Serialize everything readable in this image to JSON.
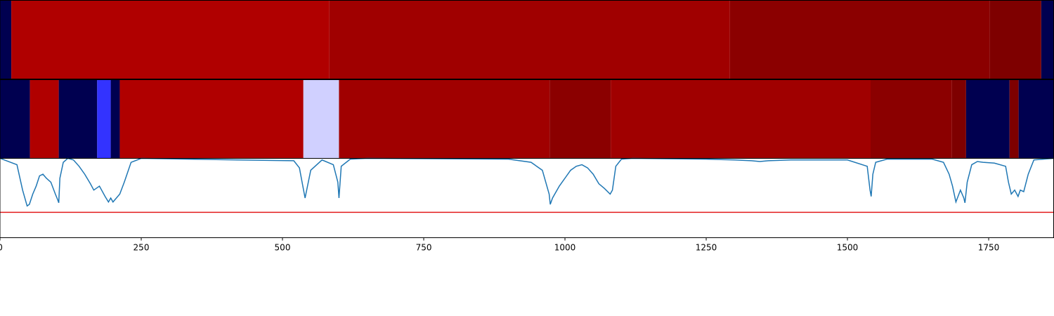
{
  "chart_data": {
    "type": "heatmap",
    "title": "",
    "xlabel": "",
    "ylabel": "",
    "xlim": [
      0,
      1865
    ],
    "grid": false,
    "legend": "none",
    "x_ticks": [
      0,
      250,
      500,
      750,
      1000,
      1250,
      1500,
      1750
    ],
    "x_tick_labels": [
      "0",
      "250",
      "500",
      "750",
      "1000",
      "1250",
      "1500",
      "1750"
    ],
    "panels": [
      {
        "type": "segment_strip",
        "segments": [
          {
            "start": 0,
            "end": 20,
            "color": "#000050"
          },
          {
            "start": 20,
            "end": 583,
            "color": "#b00000"
          },
          {
            "start": 583,
            "end": 1292,
            "color": "#a00000"
          },
          {
            "start": 1292,
            "end": 1752,
            "color": "#8b0000"
          },
          {
            "start": 1752,
            "end": 1843,
            "color": "#7e0000"
          },
          {
            "start": 1843,
            "end": 1865,
            "color": "#000050"
          }
        ]
      },
      {
        "type": "segment_strip",
        "segments": [
          {
            "start": 0,
            "end": 53,
            "color": "#000050"
          },
          {
            "start": 53,
            "end": 104,
            "color": "#b00000"
          },
          {
            "start": 104,
            "end": 172,
            "color": "#000050"
          },
          {
            "start": 172,
            "end": 196,
            "color": "#3333ff"
          },
          {
            "start": 196,
            "end": 212,
            "color": "#000050"
          },
          {
            "start": 212,
            "end": 537,
            "color": "#b00000"
          },
          {
            "start": 537,
            "end": 600,
            "color": "#d0d0ff"
          },
          {
            "start": 600,
            "end": 973,
            "color": "#a00000"
          },
          {
            "start": 973,
            "end": 1081,
            "color": "#8b0000"
          },
          {
            "start": 1081,
            "end": 1541,
            "color": "#a00000"
          },
          {
            "start": 1541,
            "end": 1685,
            "color": "#8b0000"
          },
          {
            "start": 1685,
            "end": 1710,
            "color": "#7e0000"
          },
          {
            "start": 1710,
            "end": 1787,
            "color": "#000050"
          },
          {
            "start": 1787,
            "end": 1803,
            "color": "#7e0000"
          },
          {
            "start": 1803,
            "end": 1865,
            "color": "#000050"
          }
        ]
      },
      {
        "type": "line",
        "ylim": [
          -1.0,
          0.0
        ],
        "threshold": {
          "y": -0.68,
          "color": "#e31a1c"
        },
        "series": [
          {
            "color": "#1f77b4",
            "x": [
              0,
              30,
              40,
              48,
              52,
              58,
              64,
              70,
              76,
              82,
              90,
              98,
              102,
              104,
              106,
              112,
              120,
              130,
              140,
              150,
              160,
              166,
              170,
              176,
              186,
              192,
              196,
              200,
              206,
              212,
              220,
              232,
              250,
              420,
              520,
              530,
              536,
              540,
              550,
              570,
              590,
              598,
              600,
              604,
              620,
              650,
              900,
              940,
              960,
              972,
              974,
              978,
              990,
              1000,
              1010,
              1020,
              1030,
              1040,
              1050,
              1060,
              1070,
              1080,
              1084,
              1090,
              1100,
              1120,
              1250,
              1300,
              1330,
              1345,
              1360,
              1400,
              1500,
              1535,
              1540,
              1542,
              1545,
              1550,
              1570,
              1650,
              1670,
              1680,
              1686,
              1692,
              1700,
              1706,
              1708,
              1712,
              1720,
              1730,
              1740,
              1760,
              1780,
              1785,
              1790,
              1796,
              1802,
              1806,
              1812,
              1820,
              1830,
              1865
            ],
            "y": [
              0.0,
              -0.08,
              -0.4,
              -0.6,
              -0.58,
              -0.45,
              -0.35,
              -0.22,
              -0.2,
              -0.25,
              -0.3,
              -0.45,
              -0.52,
              -0.56,
              -0.25,
              -0.05,
              0.0,
              -0.02,
              -0.1,
              -0.2,
              -0.32,
              -0.4,
              -0.38,
              -0.35,
              -0.48,
              -0.55,
              -0.5,
              -0.55,
              -0.5,
              -0.45,
              -0.3,
              -0.05,
              0.0,
              -0.02,
              -0.03,
              -0.12,
              -0.35,
              -0.5,
              -0.15,
              -0.02,
              -0.08,
              -0.3,
              -0.5,
              -0.1,
              -0.01,
              0.0,
              -0.01,
              -0.05,
              -0.15,
              -0.45,
              -0.58,
              -0.5,
              -0.35,
              -0.25,
              -0.15,
              -0.1,
              -0.08,
              -0.12,
              -0.2,
              -0.32,
              -0.38,
              -0.45,
              -0.4,
              -0.1,
              -0.01,
              0.0,
              -0.01,
              -0.02,
              -0.03,
              -0.04,
              -0.03,
              -0.02,
              -0.02,
              -0.1,
              -0.4,
              -0.48,
              -0.2,
              -0.05,
              -0.01,
              -0.01,
              -0.05,
              -0.2,
              -0.35,
              -0.55,
              -0.4,
              -0.5,
              -0.56,
              -0.3,
              -0.08,
              -0.04,
              -0.05,
              -0.06,
              -0.1,
              -0.3,
              -0.45,
              -0.4,
              -0.48,
              -0.4,
              -0.42,
              -0.2,
              -0.02,
              0.0
            ]
          }
        ]
      }
    ]
  }
}
